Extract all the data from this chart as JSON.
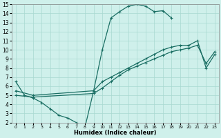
{
  "xlabel": "Humidex (Indice chaleur)",
  "bg_color": "#cff0eb",
  "grid_color": "#a8d8d0",
  "line_color": "#1a6e63",
  "xlim": [
    -0.5,
    23.5
  ],
  "ylim": [
    2,
    15
  ],
  "xticks": [
    0,
    1,
    2,
    3,
    4,
    5,
    6,
    7,
    8,
    9,
    10,
    11,
    12,
    13,
    14,
    15,
    16,
    17,
    18,
    19,
    20,
    21,
    22,
    23
  ],
  "yticks": [
    2,
    3,
    4,
    5,
    6,
    7,
    8,
    9,
    10,
    11,
    12,
    13,
    14,
    15
  ],
  "series": [
    {
      "x": [
        0,
        1,
        2,
        3,
        4,
        5,
        6,
        7,
        8,
        9,
        10,
        11,
        12,
        13,
        14,
        15,
        16,
        17,
        18
      ],
      "y": [
        6.5,
        5.0,
        4.7,
        4.2,
        3.5,
        2.8,
        2.5,
        2.0,
        1.5,
        5.5,
        10.0,
        13.5,
        14.2,
        14.8,
        15.0,
        14.8,
        14.2,
        14.3,
        13.5
      ]
    },
    {
      "x": [
        0,
        2,
        9,
        10,
        11,
        12,
        13,
        14,
        15,
        16,
        17,
        18,
        19,
        20,
        21,
        22,
        23
      ],
      "y": [
        5.5,
        5.0,
        5.5,
        6.5,
        7.0,
        7.5,
        8.0,
        8.5,
        9.0,
        9.5,
        10.0,
        10.3,
        10.5,
        10.5,
        11.0,
        8.0,
        9.5
      ]
    },
    {
      "x": [
        0,
        2,
        9,
        10,
        11,
        12,
        13,
        14,
        15,
        16,
        17,
        18,
        19,
        20,
        21,
        22,
        23
      ],
      "y": [
        5.0,
        4.8,
        5.2,
        5.8,
        6.5,
        7.2,
        7.8,
        8.2,
        8.6,
        9.0,
        9.4,
        9.8,
        10.0,
        10.2,
        10.5,
        8.5,
        9.8
      ]
    }
  ]
}
